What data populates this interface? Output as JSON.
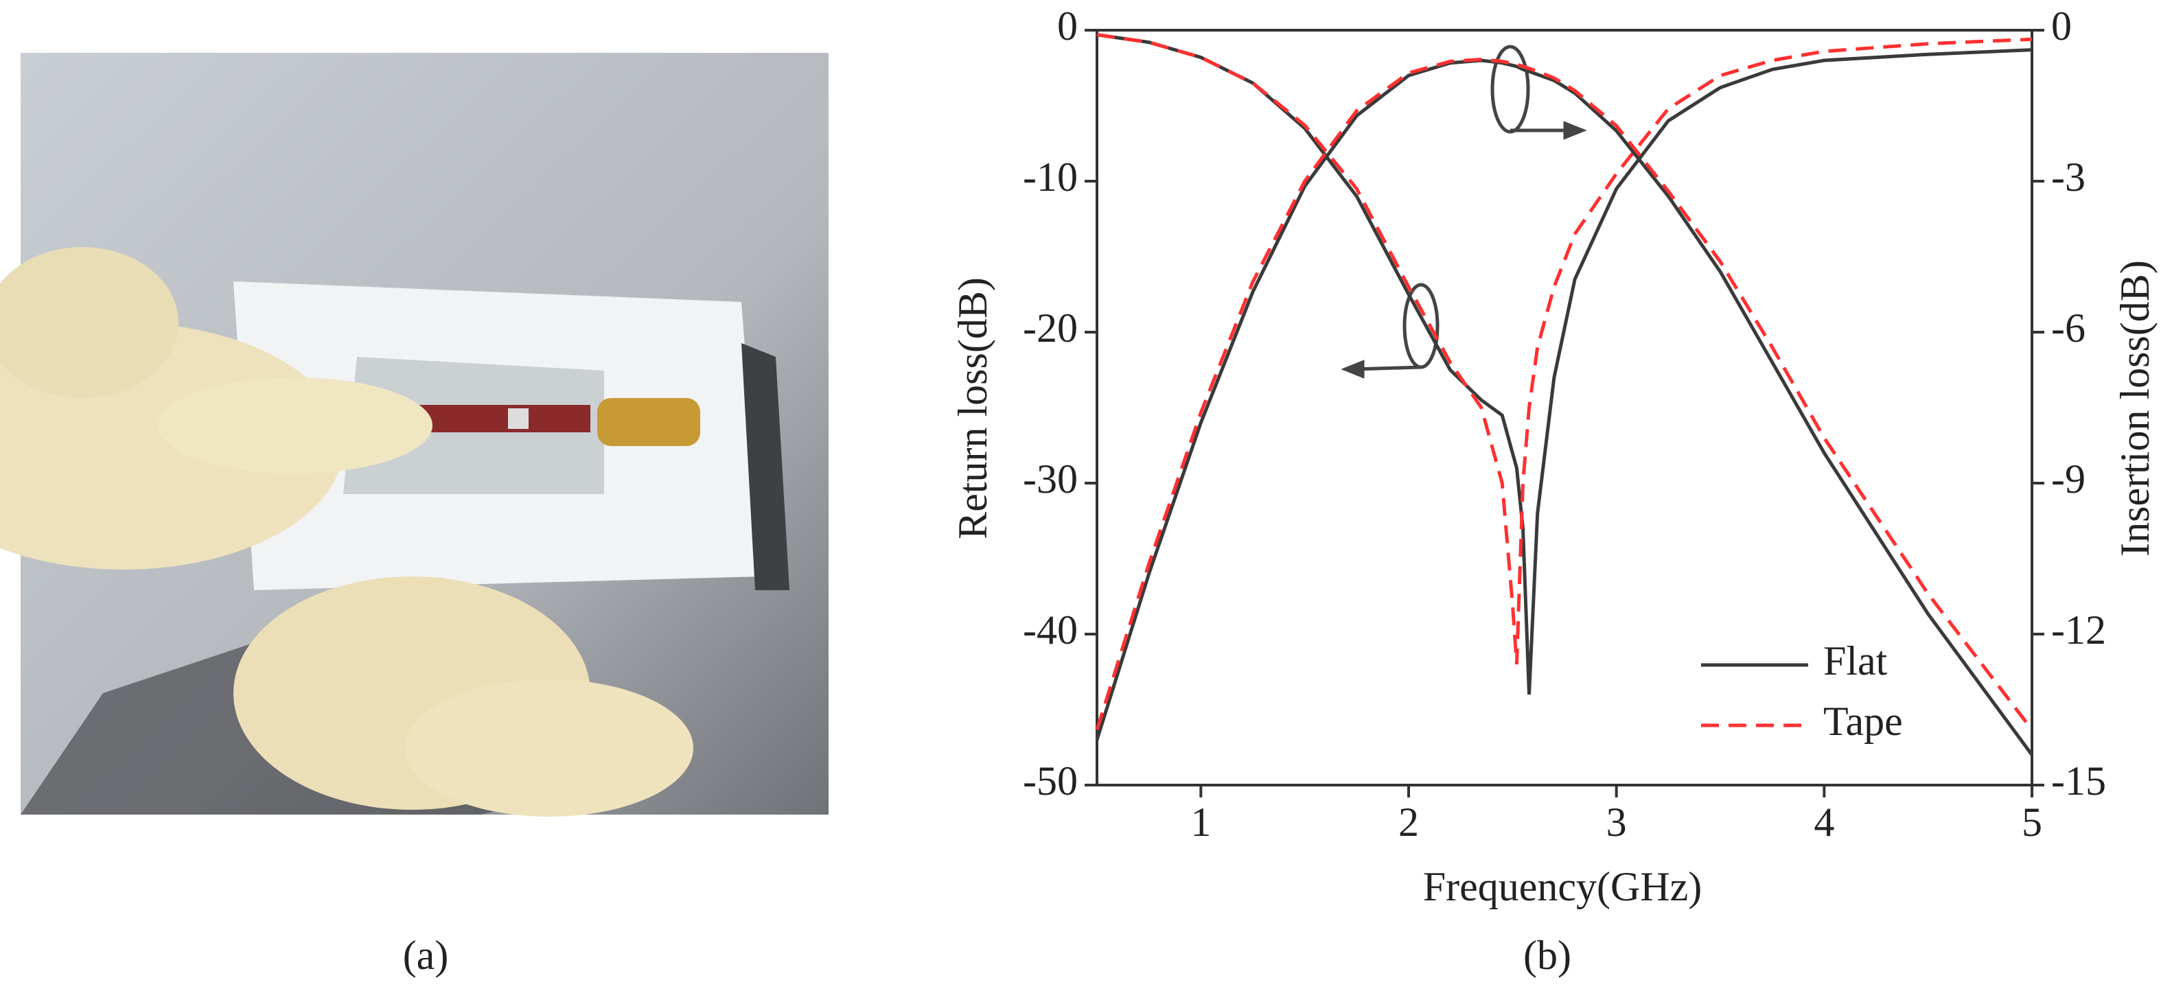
{
  "captions": [
    "(a)",
    "(b)"
  ],
  "chart_data": {
    "type": "line",
    "xlabel": "Frequency(GHz)",
    "ylabel": "Return loss(dB)",
    "y2label": "Insertion loss(dB)",
    "x": [
      0.5,
      0.75,
      1,
      1.25,
      1.5,
      1.75,
      2,
      2.2,
      2.35,
      2.45,
      2.5,
      2.52,
      2.55,
      2.58,
      2.62,
      2.7,
      2.8,
      3,
      3.25,
      3.5,
      3.75,
      4,
      4.5,
      5
    ],
    "xlim": [
      0.5,
      5
    ],
    "xticks": [
      1,
      2,
      3,
      4,
      5
    ],
    "ylim": [
      -50,
      0
    ],
    "yticks": [
      0,
      -10,
      -20,
      -30,
      -40,
      -50
    ],
    "y2lim": [
      -15,
      0
    ],
    "y2ticks": [
      0,
      -3,
      -6,
      -9,
      -12,
      -15
    ],
    "legend": "lower right",
    "series": [
      {
        "name": "Flat",
        "color": "#3a3a3a",
        "dash": false,
        "values": [
          -0.3,
          -0.8,
          -1.8,
          -3.5,
          -6.5,
          -11,
          -17.5,
          -22.5,
          -24.5,
          -25.5,
          -28,
          -29,
          -33,
          -44,
          -32,
          -23,
          -16.5,
          -10.5,
          -6,
          -3.8,
          -2.6,
          -2,
          -1.6,
          -1.3
        ]
      },
      {
        "name": "Tape",
        "color": "#ff3030",
        "dash": true,
        "values": [
          -0.3,
          -0.8,
          -1.8,
          -3.5,
          -6.3,
          -10.5,
          -17,
          -22,
          -25,
          -30,
          -38,
          -42,
          -30,
          -25,
          -21,
          -17,
          -13.5,
          -9.5,
          -5.2,
          -3,
          -2,
          -1.4,
          -0.9,
          -0.6
        ]
      },
      {
        "name": "Flat",
        "color": "#3a3a3a",
        "dash": false,
        "axis": "y2",
        "values": [
          -14.1,
          -10.8,
          -7.8,
          -5.2,
          -3.1,
          -1.7,
          -0.9,
          -0.65,
          -0.6,
          -0.65,
          -0.7,
          -0.72,
          -0.78,
          -0.82,
          -0.88,
          -1,
          -1.25,
          -2,
          -3.3,
          -4.8,
          -6.6,
          -8.4,
          -11.6,
          -14.4
        ]
      },
      {
        "name": "Tape",
        "color": "#ff3030",
        "dash": true,
        "axis": "y2",
        "values": [
          -13.9,
          -10.6,
          -7.6,
          -5.0,
          -3.0,
          -1.6,
          -0.85,
          -0.62,
          -0.58,
          -0.62,
          -0.66,
          -0.68,
          -0.72,
          -0.76,
          -0.82,
          -0.95,
          -1.2,
          -1.9,
          -3.2,
          -4.6,
          -6.3,
          -8.1,
          -11.2,
          -13.9
        ]
      }
    ]
  }
}
